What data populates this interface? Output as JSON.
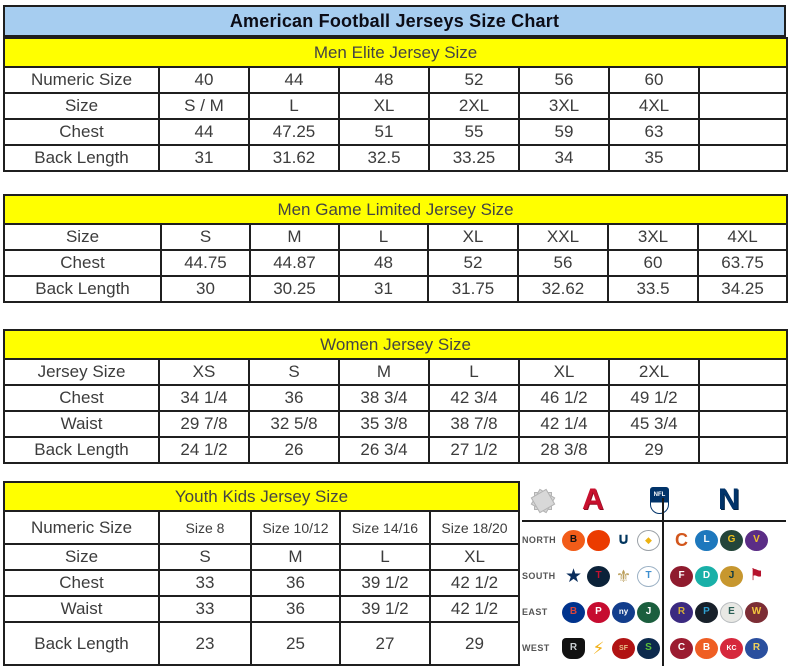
{
  "title": "American Football Jerseys Size Chart",
  "colors": {
    "title_bg": "#a6cdf0",
    "section_header_bg": "#ffff00",
    "border": "#1f1f1f",
    "afc_red": "#c8102e",
    "nfc_blue": "#013369"
  },
  "chart_data": [
    {
      "type": "table",
      "title": "Men Elite Jersey Size",
      "rows": [
        {
          "label": "Numeric Size",
          "cells": [
            "40",
            "44",
            "48",
            "52",
            "56",
            "60",
            ""
          ]
        },
        {
          "label": "Size",
          "cells": [
            "S / M",
            "L",
            "XL",
            "2XL",
            "3XL",
            "4XL",
            ""
          ]
        },
        {
          "label": "Chest",
          "cells": [
            "44",
            "47.25",
            "51",
            "55",
            "59",
            "63",
            ""
          ]
        },
        {
          "label": "Back Length",
          "cells": [
            "31",
            "31.62",
            "32.5",
            "33.25",
            "34",
            "35",
            ""
          ]
        }
      ]
    },
    {
      "type": "table",
      "title": "Men Game Limited Jersey Size",
      "rows": [
        {
          "label": "Size",
          "cells": [
            "S",
            "M",
            "L",
            "XL",
            "XXL",
            "3XL",
            "4XL"
          ]
        },
        {
          "label": "Chest",
          "cells": [
            "44.75",
            "44.87",
            "48",
            "52",
            "56",
            "60",
            "63.75"
          ]
        },
        {
          "label": "Back Length",
          "cells": [
            "30",
            "30.25",
            "31",
            "31.75",
            "32.62",
            "33.5",
            "34.25"
          ]
        }
      ]
    },
    {
      "type": "table",
      "title": "Women Jersey Size",
      "rows": [
        {
          "label": "Jersey Size",
          "cells": [
            "XS",
            "S",
            "M",
            "L",
            "XL",
            "2XL",
            ""
          ]
        },
        {
          "label": "Chest",
          "cells": [
            "34 1/4",
            "36",
            "38 3/4",
            "42 3/4",
            "46 1/2",
            "49 1/2",
            ""
          ]
        },
        {
          "label": "Waist",
          "cells": [
            "29 7/8",
            "32 5/8",
            "35 3/8",
            "38 7/8",
            "42 1/4",
            "45 3/4",
            ""
          ]
        },
        {
          "label": "Back Length",
          "cells": [
            "24 1/2",
            "26",
            "26 3/4",
            "27 1/2",
            "28 3/8",
            "29",
            ""
          ]
        }
      ]
    },
    {
      "type": "table",
      "title": "Youth Kids Jersey Size",
      "rows": [
        {
          "label": "Numeric Size",
          "cells": [
            "Size 8",
            "Size 10/12",
            "Size 14/16",
            "Size 18/20"
          ]
        },
        {
          "label": "Size",
          "cells": [
            "S",
            "M",
            "L",
            "XL"
          ]
        },
        {
          "label": "Chest",
          "cells": [
            "33",
            "36",
            "39 1/2",
            "42 1/2"
          ]
        },
        {
          "label": "Waist",
          "cells": [
            "33",
            "36",
            "39 1/2",
            "42 1/2"
          ]
        },
        {
          "label": "Back Length",
          "cells": [
            "23",
            "25",
            "27",
            "29"
          ]
        }
      ]
    }
  ],
  "logo_panel": {
    "afc_label": "A",
    "nfc_label": "N",
    "shield_label": "NFL",
    "rows": [
      {
        "label": "NORTH",
        "afc": [
          {
            "name": "bengals",
            "glyph": "B",
            "bg": "#f25c19",
            "fg": "#111111"
          },
          {
            "name": "browns",
            "glyph": "",
            "bg": "#eb3b00",
            "fg": "#ffffff"
          },
          {
            "name": "colts",
            "glyph": "∪",
            "bg": "none",
            "fg": "#01355e",
            "fs": 16
          },
          {
            "name": "steelers",
            "glyph": "◆",
            "bg": "#ffffff",
            "fg": "#edb211",
            "border": "#9aa0a6",
            "fs": 9
          }
        ],
        "nfc": [
          {
            "name": "bears",
            "glyph": "C",
            "bg": "none",
            "fg": "#d2561c",
            "fs": 18
          },
          {
            "name": "lions",
            "glyph": "L",
            "bg": "#1d78bd",
            "fg": "#ffffff"
          },
          {
            "name": "packers",
            "glyph": "G",
            "bg": "#24453a",
            "fg": "#f1c01c"
          },
          {
            "name": "vikings",
            "glyph": "V",
            "bg": "#5b2d86",
            "fg": "#f0bf28"
          }
        ]
      },
      {
        "label": "SOUTH",
        "afc": [
          {
            "name": "cowboys",
            "glyph": "★",
            "bg": "none",
            "fg": "#0a2d5c",
            "fs": 19
          },
          {
            "name": "texans",
            "glyph": "T",
            "bg": "#0b2239",
            "fg": "#c41230"
          },
          {
            "name": "saints",
            "glyph": "⚜",
            "bg": "none",
            "fg": "#b99d59",
            "fs": 17
          },
          {
            "name": "titans",
            "glyph": "T",
            "bg": "#ffffff",
            "fg": "#3e8fd0",
            "border": "#9ab0c4"
          }
        ],
        "nfc": [
          {
            "name": "falcons",
            "glyph": "F",
            "bg": "#8f1b2e",
            "fg": "#ffffff"
          },
          {
            "name": "dolphins",
            "glyph": "D",
            "bg": "#19b0a8",
            "fg": "#ffffff"
          },
          {
            "name": "jaguars",
            "glyph": "J",
            "bg": "#c7972f",
            "fg": "#0c3a44"
          },
          {
            "name": "buccaneers",
            "glyph": "⚑",
            "bg": "none",
            "fg": "#b5132d",
            "fs": 16
          }
        ]
      },
      {
        "label": "EAST",
        "afc": [
          {
            "name": "bills",
            "glyph": "B",
            "bg": "#00338d",
            "fg": "#d9453c"
          },
          {
            "name": "patriots",
            "glyph": "P",
            "bg": "#c60c30",
            "fg": "#ffffff"
          },
          {
            "name": "giants",
            "glyph": "ny",
            "bg": "#123d8c",
            "fg": "#ffffff",
            "fs": 8
          },
          {
            "name": "jets",
            "glyph": "J",
            "bg": "#1b5e3e",
            "fg": "#ffffff"
          }
        ],
        "nfc": [
          {
            "name": "ravens",
            "glyph": "R",
            "bg": "#3b2a80",
            "fg": "#d4af37"
          },
          {
            "name": "panthers",
            "glyph": "P",
            "bg": "#18202a",
            "fg": "#2f9fd0"
          },
          {
            "name": "eagles",
            "glyph": "E",
            "bg": "#e8e8e4",
            "fg": "#2a5e54",
            "border": "#b9bdc0"
          },
          {
            "name": "redskins",
            "glyph": "W",
            "bg": "#7c2d35",
            "fg": "#f5c73e"
          }
        ]
      },
      {
        "label": "WEST",
        "afc": [
          {
            "name": "raiders",
            "glyph": "R",
            "bg": "#111111",
            "fg": "#c9ced1",
            "shape": "shield"
          },
          {
            "name": "chargers",
            "glyph": "⚡",
            "bg": "none",
            "fg": "#f2b21c",
            "fs": 17
          },
          {
            "name": "fortyniners",
            "glyph": "SF",
            "bg": "#b11313",
            "fg": "#e9c28a",
            "fs": 7
          },
          {
            "name": "seahawks",
            "glyph": "S",
            "bg": "#0d2a4d",
            "fg": "#59c03a"
          }
        ],
        "nfc": [
          {
            "name": "cardinals",
            "glyph": "C",
            "bg": "#9b1b30",
            "fg": "#ffffff"
          },
          {
            "name": "broncos",
            "glyph": "B",
            "bg": "#ef5e23",
            "fg": "#ffffff"
          },
          {
            "name": "chiefs",
            "glyph": "KC",
            "bg": "#d6283c",
            "fg": "#ffffff",
            "fs": 7
          },
          {
            "name": "rams",
            "glyph": "R",
            "bg": "#2a4f9e",
            "fg": "#f0d25a"
          }
        ]
      }
    ]
  }
}
